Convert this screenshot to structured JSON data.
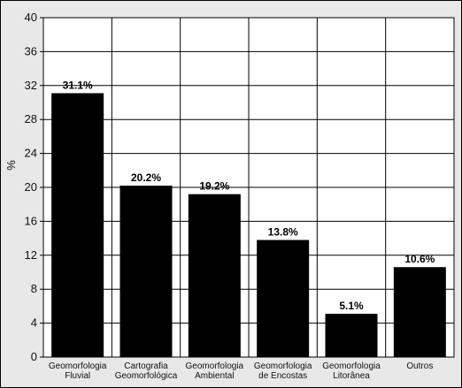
{
  "chart_data": {
    "type": "bar",
    "categories": [
      [
        "Geomorfologia",
        "Fluvial"
      ],
      [
        "Cartografia",
        "Geomorfológica"
      ],
      [
        "Geomorfologia",
        "Ambiental"
      ],
      [
        "Geomorfologia",
        "de Encostas"
      ],
      [
        "Geomorfologia",
        "Litorânea"
      ],
      [
        "Outros"
      ]
    ],
    "values": [
      31.1,
      20.2,
      19.2,
      13.8,
      5.1,
      10.6
    ],
    "data_labels": [
      "31.1%",
      "20.2%",
      "19.2%",
      "13.8%",
      "5.1%",
      "10.6%"
    ],
    "ylabel": "%",
    "ylim": [
      0,
      40
    ],
    "yticks": [
      0,
      4,
      8,
      12,
      16,
      20,
      24,
      28,
      32,
      36,
      40
    ],
    "grid": true,
    "colors": {
      "bar": "#000000",
      "plot_bg": "#ffffff",
      "frame_bg": "#e8e8e8",
      "grid": "#000000"
    }
  }
}
